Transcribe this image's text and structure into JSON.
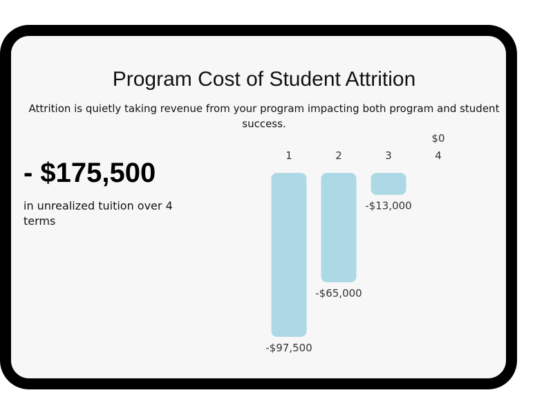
{
  "title": "Program Cost of Student Attrition",
  "subtitle": "Attrition is quietly taking revenue from your program impacting both program and student success.",
  "summary": {
    "value": "- $175,500",
    "caption": "in unrealized tuition over 4 terms"
  },
  "chart_data": {
    "type": "bar",
    "categories": [
      "1",
      "2",
      "3",
      "4"
    ],
    "values": [
      -97500,
      -65000,
      -13000,
      0
    ],
    "data_labels": [
      "-$97,500",
      "-$65,000",
      "-$13,000",
      "$0"
    ],
    "bar_color": "#add8e6",
    "grid": false
  }
}
